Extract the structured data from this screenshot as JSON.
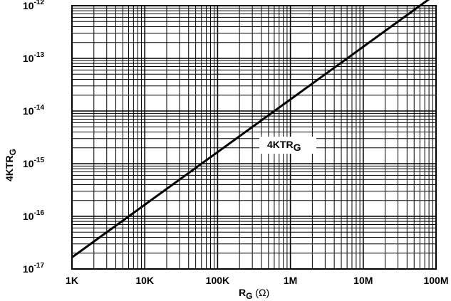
{
  "chart_data": {
    "type": "line",
    "x_scale": "log",
    "y_scale": "log",
    "xlim": [
      1000,
      100000000
    ],
    "ylim": [
      1e-17,
      1e-12
    ],
    "grid": true,
    "x_ticks": [
      {
        "value": 1000,
        "label": "1K"
      },
      {
        "value": 10000,
        "label": "10K"
      },
      {
        "value": 100000,
        "label": "100K"
      },
      {
        "value": 1000000,
        "label": "1M"
      },
      {
        "value": 10000000,
        "label": "10M"
      },
      {
        "value": 100000000,
        "label": "100M"
      }
    ],
    "y_ticks": [
      {
        "value": 1e-17,
        "base": "10",
        "exp": "-17"
      },
      {
        "value": 1e-16,
        "base": "10",
        "exp": "-16"
      },
      {
        "value": 1e-15,
        "base": "10",
        "exp": "-15"
      },
      {
        "value": 1e-14,
        "base": "10",
        "exp": "-14"
      },
      {
        "value": 1e-13,
        "base": "10",
        "exp": "-13"
      },
      {
        "value": 1e-12,
        "base": "10",
        "exp": "-12"
      }
    ],
    "xlabel": {
      "main": "R",
      "sub": "G",
      "unit": " (Ω)"
    },
    "ylabel": {
      "main": "4KTR",
      "sub": "G"
    },
    "series": [
      {
        "name": {
          "main": "4KTR",
          "sub": "G"
        },
        "x": [
          1000,
          100000000
        ],
        "y": [
          1.66e-17,
          1.66e-12
        ]
      }
    ]
  },
  "colors": {
    "line": "#000000",
    "grid": "#000000",
    "background": "#ffffff"
  }
}
